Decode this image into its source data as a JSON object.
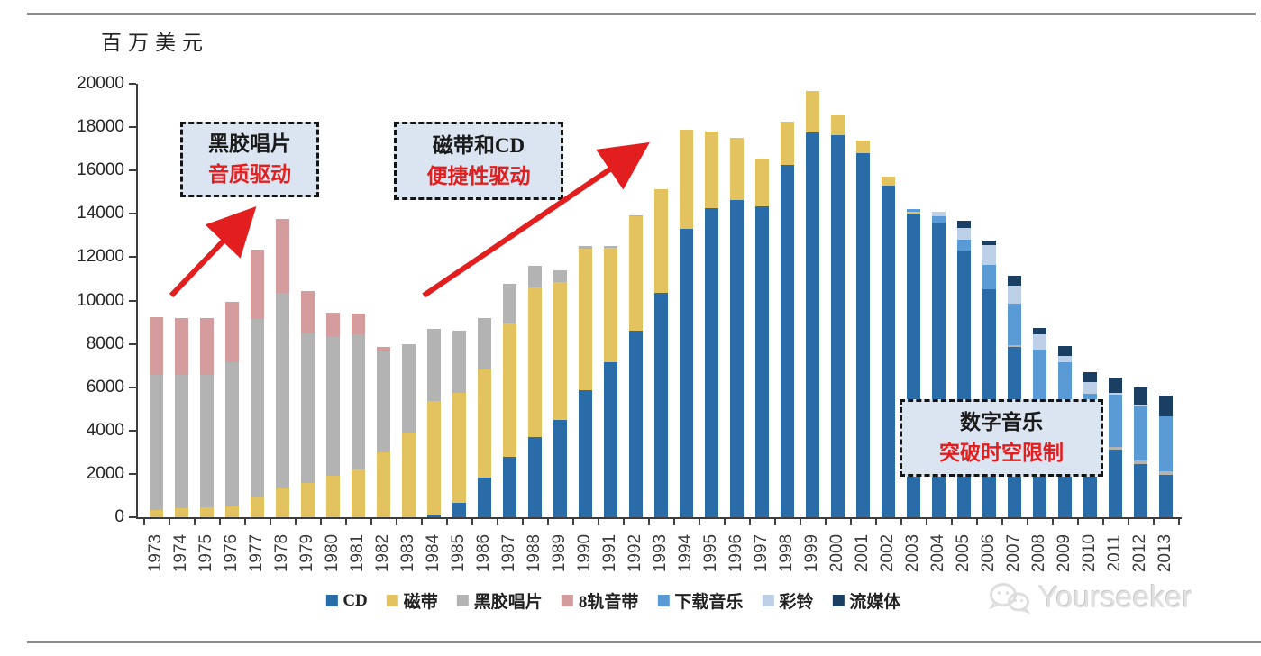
{
  "page": {
    "unit_label": "百万美元",
    "watermark": "Yourseeker"
  },
  "chart_data": {
    "type": "bar",
    "stacked": true,
    "title": "",
    "ylabel": "百万美元",
    "xlabel": "",
    "ylim": [
      0,
      20000
    ],
    "ytick_step": 2000,
    "grid": false,
    "legend_position": "bottom",
    "categories": [
      1973,
      1974,
      1975,
      1976,
      1977,
      1978,
      1979,
      1980,
      1981,
      1982,
      1983,
      1984,
      1985,
      1986,
      1987,
      1988,
      1989,
      1990,
      1991,
      1992,
      1993,
      1994,
      1995,
      1996,
      1997,
      1998,
      1999,
      2000,
      2001,
      2002,
      2003,
      2004,
      2005,
      2006,
      2007,
      2008,
      2009,
      2010,
      2011,
      2012,
      2013
    ],
    "series": [
      {
        "name": "CD",
        "color": "#2A6CA8",
        "values": [
          0,
          0,
          0,
          0,
          0,
          0,
          0,
          0,
          0,
          0,
          0,
          100,
          650,
          1850,
          2800,
          3700,
          4500,
          5850,
          7150,
          8600,
          10350,
          13300,
          14250,
          14650,
          14350,
          16250,
          17750,
          17650,
          16800,
          15300,
          14000,
          13600,
          12300,
          10500,
          7850,
          5250,
          5150,
          3400,
          3100,
          2450,
          1950
        ]
      },
      {
        "name": "磁带",
        "color": "#E3C35F",
        "values": [
          350,
          400,
          450,
          500,
          900,
          1350,
          1600,
          1900,
          2200,
          3000,
          3900,
          5250,
          5100,
          4950,
          6150,
          6900,
          6350,
          6550,
          5300,
          5300,
          4800,
          4600,
          3550,
          2850,
          2200,
          2000,
          1900,
          900,
          600,
          400,
          100,
          0,
          0,
          0,
          0,
          0,
          0,
          0,
          0,
          0,
          0
        ]
      },
      {
        "name": "黑胶唱片",
        "color": "#B3B3B3",
        "values": [
          6200,
          6150,
          6100,
          6650,
          8250,
          9000,
          6900,
          6400,
          6250,
          4700,
          4100,
          3350,
          2850,
          2400,
          1800,
          1000,
          550,
          100,
          50,
          50,
          0,
          0,
          0,
          0,
          0,
          0,
          0,
          0,
          0,
          0,
          0,
          0,
          0,
          0,
          100,
          100,
          100,
          100,
          150,
          150,
          150
        ]
      },
      {
        "name": "8轨音带",
        "color": "#D49C9C",
        "values": [
          2700,
          2650,
          2650,
          2800,
          3200,
          3400,
          1950,
          1150,
          950,
          150,
          0,
          0,
          0,
          0,
          0,
          0,
          0,
          0,
          0,
          0,
          0,
          0,
          0,
          0,
          0,
          0,
          0,
          0,
          0,
          0,
          0,
          0,
          0,
          0,
          0,
          0,
          0,
          0,
          0,
          0,
          0
        ]
      },
      {
        "name": "下载音乐",
        "color": "#5B9BD5",
        "values": [
          0,
          0,
          0,
          0,
          0,
          0,
          0,
          0,
          0,
          0,
          0,
          0,
          0,
          0,
          0,
          0,
          0,
          0,
          0,
          0,
          0,
          0,
          0,
          0,
          0,
          0,
          0,
          0,
          0,
          0,
          100,
          300,
          500,
          1150,
          1900,
          2400,
          1900,
          2200,
          2400,
          2500,
          2550
        ]
      },
      {
        "name": "彩铃",
        "color": "#BDD0E8",
        "values": [
          0,
          0,
          0,
          0,
          0,
          0,
          0,
          0,
          0,
          0,
          0,
          0,
          0,
          0,
          0,
          0,
          0,
          0,
          0,
          0,
          0,
          0,
          0,
          0,
          0,
          0,
          0,
          0,
          0,
          0,
          0,
          200,
          550,
          900,
          850,
          700,
          300,
          550,
          100,
          100,
          0
        ]
      },
      {
        "name": "流媒体",
        "color": "#1B3F63",
        "values": [
          0,
          0,
          0,
          0,
          0,
          0,
          0,
          0,
          0,
          0,
          0,
          0,
          0,
          0,
          0,
          0,
          0,
          0,
          0,
          0,
          0,
          0,
          0,
          0,
          0,
          0,
          0,
          0,
          0,
          0,
          0,
          0,
          350,
          200,
          450,
          300,
          450,
          450,
          700,
          800,
          950
        ]
      }
    ]
  },
  "annotations": {
    "accent_color": "#E31E1E",
    "box1": {
      "line1": "黑胶唱片",
      "line2": "音质驱动"
    },
    "box2": {
      "line1": "磁带和CD",
      "line2": "便捷性驱动"
    },
    "box3": {
      "line1": "数字音乐",
      "line2": "突破时空限制"
    }
  }
}
